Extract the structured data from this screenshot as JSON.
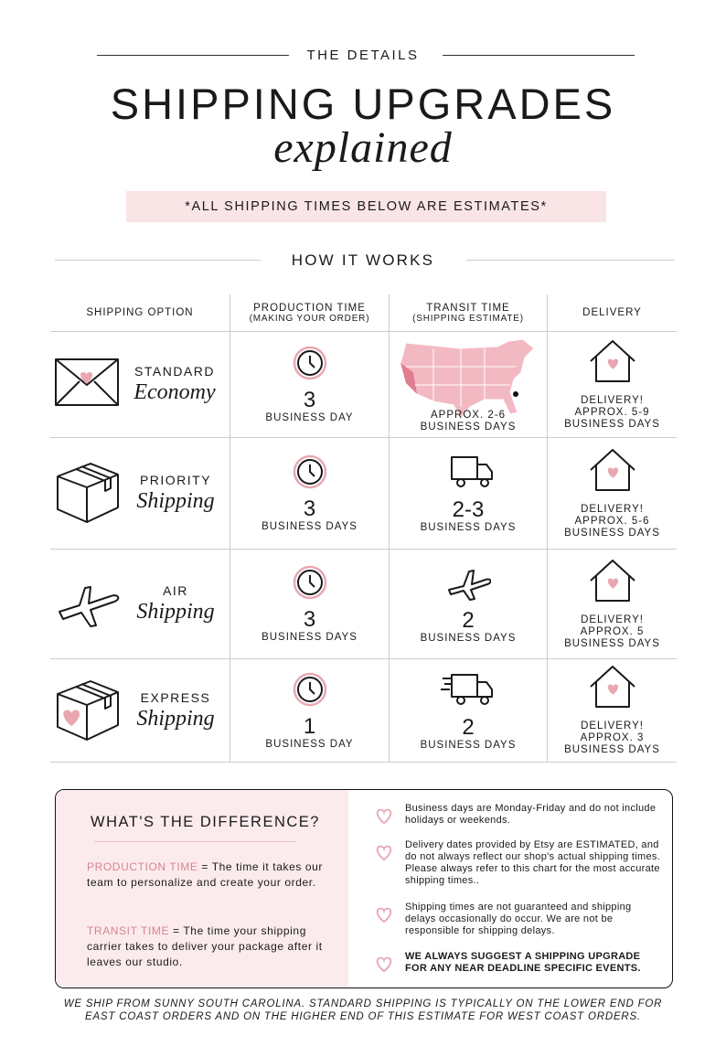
{
  "header": {
    "eyebrow": "THE DETAILS",
    "title": "SHIPPING UPGRADES",
    "script": "explained",
    "note": "*ALL SHIPPING TIMES BELOW ARE ESTIMATES*"
  },
  "section": "HOW IT WORKS",
  "table": {
    "headers": [
      {
        "title": "SHIPPING OPTION"
      },
      {
        "title": "PRODUCTION TIME",
        "sub": "(MAKING YOUR ORDER)"
      },
      {
        "title": "TRANSIT TIME",
        "sub": "(SHIPPING ESTIMATE)"
      },
      {
        "title": "DELIVERY"
      }
    ],
    "rows": [
      {
        "name": "STANDARD",
        "script": "Economy",
        "production": {
          "number": "3",
          "unit": "BUSINESS DAY"
        },
        "transit": {
          "lines": [
            "APPROX. 2-6",
            "BUSINESS DAYS"
          ]
        },
        "delivery": [
          "DELIVERY!",
          "APPROX. 5-9",
          "BUSINESS DAYS"
        ]
      },
      {
        "name": "PRIORITY",
        "script": "Shipping",
        "production": {
          "number": "3",
          "unit": "BUSINESS DAYS"
        },
        "transit": {
          "number": "2-3",
          "unit": "BUSINESS DAYS"
        },
        "delivery": [
          "DELIVERY!",
          "APPROX. 5-6",
          "BUSINESS DAYS"
        ]
      },
      {
        "name": "AIR",
        "script": "Shipping",
        "production": {
          "number": "3",
          "unit": "BUSINESS DAYS"
        },
        "transit": {
          "number": "2",
          "unit": "BUSINESS DAYS"
        },
        "delivery": [
          "DELIVERY!",
          "APPROX. 5",
          "BUSINESS DAYS"
        ]
      },
      {
        "name": "EXPRESS",
        "script": "Shipping",
        "production": {
          "number": "1",
          "unit": "BUSINESS DAY"
        },
        "transit": {
          "number": "2",
          "unit": "BUSINESS DAYS"
        },
        "delivery": [
          "DELIVERY!",
          "APPROX. 3",
          "BUSINESS DAYS"
        ]
      }
    ]
  },
  "difference": {
    "title": "WHAT'S THE DIFFERENCE?",
    "definitions": [
      {
        "term": "PRODUCTION TIME",
        "text": "= The time it takes our team to personalize and create your order."
      },
      {
        "term": "TRANSIT TIME",
        "text": "= The time your shipping carrier takes to deliver your package after it leaves our studio."
      }
    ],
    "notes": [
      "Business days are Monday-Friday and do not include holidays or weekends.",
      "Delivery dates provided by Etsy are ESTIMATED, and do not always reflect our shop's actual shipping times. Please always refer to this chart for the most accurate shipping times..",
      "Shipping times are not guaranteed and shipping delays occasionally do occur. We are not be responsible for shipping delays.",
      "WE ALWAYS SUGGEST A SHIPPING UPGRADE FOR ANY NEAR DEADLINE SPECIFIC EVENTS."
    ]
  },
  "footer": "WE SHIP FROM SUNNY SOUTH CAROLINA. STANDARD SHIPPING IS TYPICALLY ON THE LOWER END FOR EAST COAST ORDERS AND ON THE HIGHER END OF THIS ESTIMATE FOR WEST COAST ORDERS."
}
